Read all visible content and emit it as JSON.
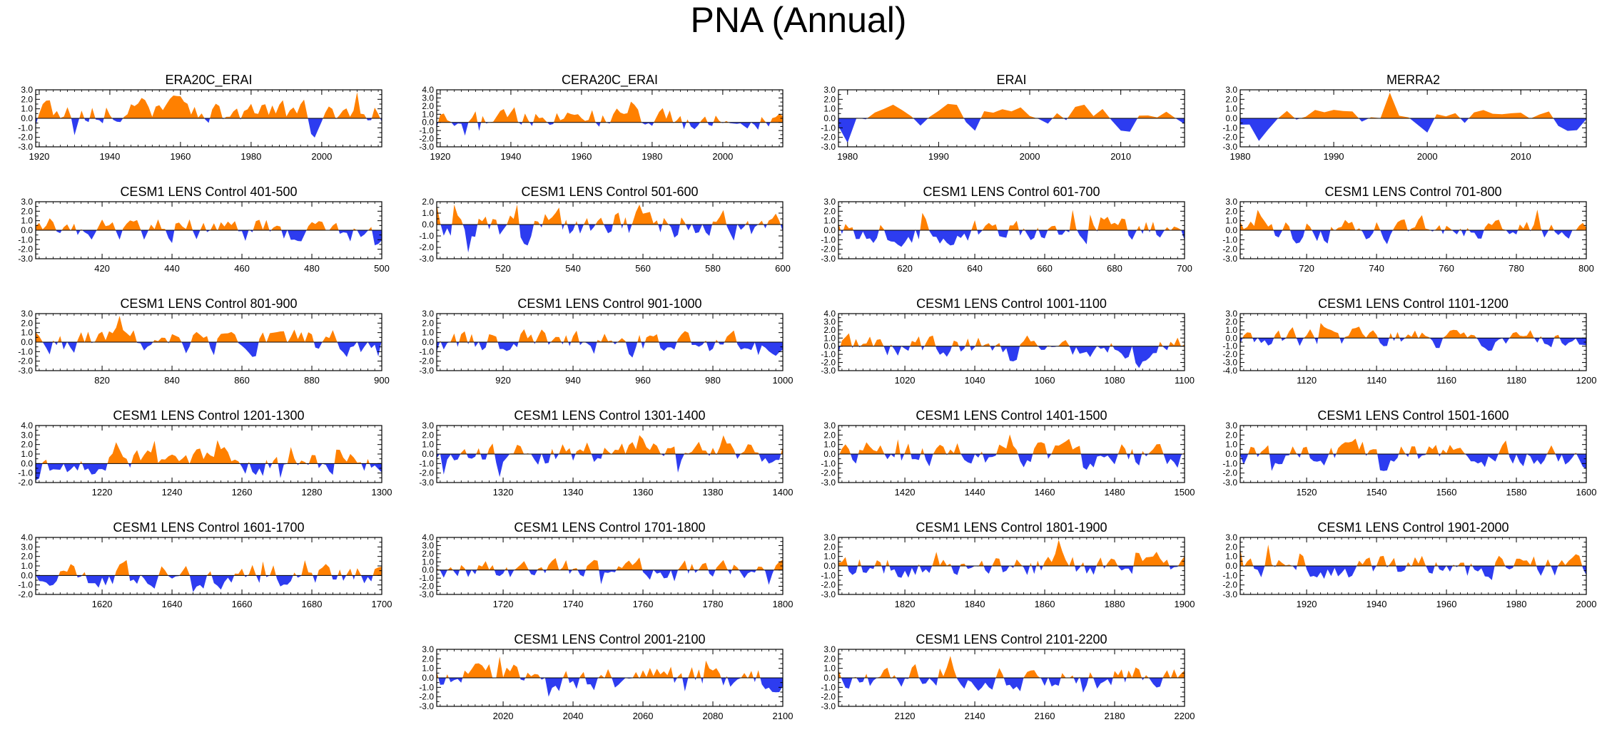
{
  "title": "PNA (Annual)",
  "colors": {
    "positive": "#ff8000",
    "negative": "#2d3cf0",
    "axis": "#000000"
  },
  "chart_data": [
    {
      "type": "area",
      "title": "ERA20C_ERAI",
      "x_range": [
        1919,
        2017
      ],
      "xticks": [
        1920,
        1940,
        1960,
        1980,
        2000
      ],
      "ylim": [
        -3,
        3
      ],
      "yticks": [
        -3,
        -2,
        -1,
        0,
        1,
        2,
        3
      ],
      "seed": 11,
      "bias": 0.35,
      "amp": 1.0
    },
    {
      "type": "area",
      "title": "CERA20C_ERAI",
      "x_range": [
        1919,
        2017
      ],
      "xticks": [
        1920,
        1940,
        1960,
        1980,
        2000
      ],
      "ylim": [
        -3,
        4
      ],
      "yticks": [
        -3,
        -2,
        -1,
        0,
        1,
        2,
        3,
        4
      ],
      "seed": 12,
      "bias": 0.3,
      "amp": 1.0
    },
    {
      "type": "area",
      "title": "ERAI",
      "x_range": [
        1979,
        2017
      ],
      "xticks": [
        1980,
        1990,
        2000,
        2010
      ],
      "ylim": [
        -3,
        3
      ],
      "yticks": [
        -3,
        -2,
        -1,
        0,
        1,
        2,
        3
      ],
      "seed": 13,
      "bias": 0.1,
      "amp": 1.2
    },
    {
      "type": "area",
      "title": "MERRA2",
      "x_range": [
        1980,
        2017
      ],
      "xticks": [
        1980,
        1990,
        2000,
        2010
      ],
      "ylim": [
        -3,
        3
      ],
      "yticks": [
        -3,
        -2,
        -1,
        0,
        1,
        2,
        3
      ],
      "seed": 14,
      "bias": 0.1,
      "amp": 1.2
    },
    {
      "type": "area",
      "title": "CESM1 LENS Control 401-500",
      "x_range": [
        401,
        500
      ],
      "xticks": [
        420,
        440,
        460,
        480,
        500
      ],
      "ylim": [
        -3,
        3
      ],
      "yticks": [
        -3,
        -2,
        -1,
        0,
        1,
        2,
        3
      ],
      "seed": 21,
      "bias": 0.0,
      "amp": 1.0
    },
    {
      "type": "area",
      "title": "CESM1 LENS Control 501-600",
      "x_range": [
        501,
        600
      ],
      "xticks": [
        520,
        540,
        560,
        580,
        600
      ],
      "ylim": [
        -3,
        2
      ],
      "yticks": [
        -3,
        -2,
        -1,
        0,
        1,
        2
      ],
      "seed": 22,
      "bias": 0.0,
      "amp": 1.0
    },
    {
      "type": "area",
      "title": "CESM1 LENS Control 601-700",
      "x_range": [
        601,
        700
      ],
      "xticks": [
        620,
        640,
        660,
        680,
        700
      ],
      "ylim": [
        -3,
        3
      ],
      "yticks": [
        -3,
        -2,
        -1,
        0,
        1,
        2,
        3
      ],
      "seed": 23,
      "bias": 0.0,
      "amp": 1.0
    },
    {
      "type": "area",
      "title": "CESM1 LENS Control 701-800",
      "x_range": [
        701,
        800
      ],
      "xticks": [
        720,
        740,
        760,
        780,
        800
      ],
      "ylim": [
        -3,
        3
      ],
      "yticks": [
        -3,
        -2,
        -1,
        0,
        1,
        2,
        3
      ],
      "seed": 24,
      "bias": 0.0,
      "amp": 1.0
    },
    {
      "type": "area",
      "title": "CESM1 LENS Control 801-900",
      "x_range": [
        801,
        900
      ],
      "xticks": [
        820,
        840,
        860,
        880,
        900
      ],
      "ylim": [
        -3,
        3
      ],
      "yticks": [
        -3,
        -2,
        -1,
        0,
        1,
        2,
        3
      ],
      "seed": 25,
      "bias": 0.0,
      "amp": 1.0
    },
    {
      "type": "area",
      "title": "CESM1 LENS Control 901-1000",
      "x_range": [
        901,
        1000
      ],
      "xticks": [
        920,
        940,
        960,
        980,
        1000
      ],
      "ylim": [
        -3,
        3
      ],
      "yticks": [
        -3,
        -2,
        -1,
        0,
        1,
        2,
        3
      ],
      "seed": 26,
      "bias": 0.0,
      "amp": 1.0
    },
    {
      "type": "area",
      "title": "CESM1 LENS Control 1001-1100",
      "x_range": [
        1001,
        1100
      ],
      "xticks": [
        1020,
        1040,
        1060,
        1080,
        1100
      ],
      "ylim": [
        -3,
        4
      ],
      "yticks": [
        -3,
        -2,
        -1,
        0,
        1,
        2,
        3,
        4
      ],
      "seed": 27,
      "bias": 0.0,
      "amp": 1.0
    },
    {
      "type": "area",
      "title": "CESM1 LENS Control 1101-1200",
      "x_range": [
        1101,
        1200
      ],
      "xticks": [
        1120,
        1140,
        1160,
        1180,
        1200
      ],
      "ylim": [
        -4,
        3
      ],
      "yticks": [
        -4,
        -3,
        -2,
        -1,
        0,
        1,
        2,
        3
      ],
      "seed": 28,
      "bias": 0.0,
      "amp": 1.0
    },
    {
      "type": "area",
      "title": "CESM1 LENS Control 1201-1300",
      "x_range": [
        1201,
        1300
      ],
      "xticks": [
        1220,
        1240,
        1260,
        1280,
        1300
      ],
      "ylim": [
        -2,
        4
      ],
      "yticks": [
        -2,
        -1,
        0,
        1,
        2,
        3,
        4
      ],
      "seed": 29,
      "bias": 0.0,
      "amp": 1.0
    },
    {
      "type": "area",
      "title": "CESM1 LENS Control 1301-1400",
      "x_range": [
        1301,
        1400
      ],
      "xticks": [
        1320,
        1340,
        1360,
        1380,
        1400
      ],
      "ylim": [
        -3,
        3
      ],
      "yticks": [
        -3,
        -2,
        -1,
        0,
        1,
        2,
        3
      ],
      "seed": 30,
      "bias": 0.0,
      "amp": 1.0
    },
    {
      "type": "area",
      "title": "CESM1 LENS Control 1401-1500",
      "x_range": [
        1401,
        1500
      ],
      "xticks": [
        1420,
        1440,
        1460,
        1480,
        1500
      ],
      "ylim": [
        -3,
        3
      ],
      "yticks": [
        -3,
        -2,
        -1,
        0,
        1,
        2,
        3
      ],
      "seed": 31,
      "bias": 0.0,
      "amp": 1.0
    },
    {
      "type": "area",
      "title": "CESM1 LENS Control 1501-1600",
      "x_range": [
        1501,
        1600
      ],
      "xticks": [
        1520,
        1540,
        1560,
        1580,
        1600
      ],
      "ylim": [
        -3,
        3
      ],
      "yticks": [
        -3,
        -2,
        -1,
        0,
        1,
        2,
        3
      ],
      "seed": 32,
      "bias": 0.0,
      "amp": 1.0
    },
    {
      "type": "area",
      "title": "CESM1 LENS Control 1601-1700",
      "x_range": [
        1601,
        1700
      ],
      "xticks": [
        1620,
        1640,
        1660,
        1680,
        1700
      ],
      "ylim": [
        -2,
        4
      ],
      "yticks": [
        -2,
        -1,
        0,
        1,
        2,
        3,
        4
      ],
      "seed": 33,
      "bias": 0.0,
      "amp": 1.0
    },
    {
      "type": "area",
      "title": "CESM1 LENS Control 1701-1800",
      "x_range": [
        1701,
        1800
      ],
      "xticks": [
        1720,
        1740,
        1760,
        1780,
        1800
      ],
      "ylim": [
        -3,
        4
      ],
      "yticks": [
        -3,
        -2,
        -1,
        0,
        1,
        2,
        3,
        4
      ],
      "seed": 34,
      "bias": 0.0,
      "amp": 1.0
    },
    {
      "type": "area",
      "title": "CESM1 LENS Control 1801-1900",
      "x_range": [
        1801,
        1900
      ],
      "xticks": [
        1820,
        1840,
        1860,
        1880,
        1900
      ],
      "ylim": [
        -3,
        3
      ],
      "yticks": [
        -3,
        -2,
        -1,
        0,
        1,
        2,
        3
      ],
      "seed": 35,
      "bias": 0.0,
      "amp": 1.0
    },
    {
      "type": "area",
      "title": "CESM1 LENS Control 1901-2000",
      "x_range": [
        1901,
        2000
      ],
      "xticks": [
        1920,
        1940,
        1960,
        1980,
        2000
      ],
      "ylim": [
        -3,
        3
      ],
      "yticks": [
        -3,
        -2,
        -1,
        0,
        1,
        2,
        3
      ],
      "seed": 36,
      "bias": 0.0,
      "amp": 1.0
    },
    {
      "type": "area",
      "title": "CESM1 LENS Control 2001-2100",
      "x_range": [
        2001,
        2100
      ],
      "xticks": [
        2020,
        2040,
        2060,
        2080,
        2100
      ],
      "ylim": [
        -3,
        3
      ],
      "yticks": [
        -3,
        -2,
        -1,
        0,
        1,
        2,
        3
      ],
      "seed": 37,
      "bias": 0.0,
      "amp": 1.0
    },
    {
      "type": "area",
      "title": "CESM1 LENS Control 2101-2200",
      "x_range": [
        2101,
        2200
      ],
      "xticks": [
        2120,
        2140,
        2160,
        2180,
        2200
      ],
      "ylim": [
        -3,
        3
      ],
      "yticks": [
        -3,
        -2,
        -1,
        0,
        1,
        2,
        3
      ],
      "seed": 38,
      "bias": 0.0,
      "amp": 1.0
    }
  ]
}
